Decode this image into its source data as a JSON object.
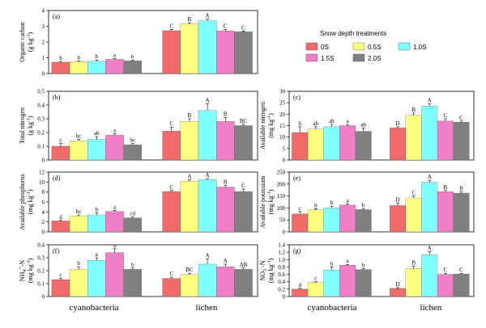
{
  "legend": {
    "title": "Snow depth treatments",
    "entries": [
      {
        "name": "0S",
        "color": "#f06a6a"
      },
      {
        "name": "0.5S",
        "color": "#ffff7f"
      },
      {
        "name": "1.0S",
        "color": "#7fffff"
      },
      {
        "name": "1.5S",
        "color": "#f07fc8"
      },
      {
        "name": "2.0S",
        "color": "#808080"
      }
    ]
  },
  "categories": [
    "cyanobacteria",
    "lichen"
  ],
  "chart_data": [
    {
      "type": "bar",
      "panel": "(a)",
      "ylabel_main": "Organic carbon",
      "ylabel_unit": "(g kg",
      "ylim": [
        0,
        4
      ],
      "yticks": [
        "0",
        "1",
        "2",
        "3",
        "4"
      ],
      "categories": [
        "cyanobacteria",
        "lichen"
      ],
      "series": [
        {
          "name": "0S",
          "values": [
            0.72,
            2.72
          ],
          "errors": [
            0.05,
            0.08
          ],
          "letters": [
            "b",
            "C"
          ]
        },
        {
          "name": "0.5S",
          "values": [
            0.75,
            3.15
          ],
          "errors": [
            0.05,
            0.08
          ],
          "letters": [
            "b",
            "B"
          ]
        },
        {
          "name": "1.0S",
          "values": [
            0.78,
            3.35
          ],
          "errors": [
            0.08,
            0.1
          ],
          "letters": [
            "b",
            "A"
          ]
        },
        {
          "name": "1.5S",
          "values": [
            0.9,
            2.7
          ],
          "errors": [
            0.05,
            0.1
          ],
          "letters": [
            "a",
            "C"
          ]
        },
        {
          "name": "2.0S",
          "values": [
            0.8,
            2.65
          ],
          "errors": [
            0.04,
            0.05
          ],
          "letters": [
            "b",
            "C"
          ]
        }
      ]
    },
    {
      "type": "bar",
      "panel": "(b)",
      "ylabel_main": "Total nitrogen",
      "ylabel_unit": "(g kg",
      "ylim": [
        0,
        0.5
      ],
      "yticks": [
        "0",
        "0.1",
        "0.2",
        "0.3",
        "0.4",
        "0.5"
      ],
      "categories": [
        "cyanobacteria",
        "lichen"
      ],
      "series": [
        {
          "name": "0S",
          "values": [
            0.1,
            0.21
          ],
          "errors": [
            0.02,
            0.03
          ],
          "letters": [
            "c",
            "C"
          ]
        },
        {
          "name": "0.5S",
          "values": [
            0.14,
            0.28
          ],
          "errors": [
            0.01,
            0.02
          ],
          "letters": [
            "bc",
            "B"
          ]
        },
        {
          "name": "1.0S",
          "values": [
            0.15,
            0.36
          ],
          "errors": [
            0.02,
            0.05
          ],
          "letters": [
            "ab",
            "A"
          ]
        },
        {
          "name": "1.5S",
          "values": [
            0.18,
            0.28
          ],
          "errors": [
            0.01,
            0.03
          ],
          "letters": [
            "a",
            "B"
          ]
        },
        {
          "name": "2.0S",
          "values": [
            0.11,
            0.25
          ],
          "errors": [
            0.01,
            0.01
          ],
          "letters": [
            "bc",
            "BC"
          ]
        }
      ]
    },
    {
      "type": "bar",
      "panel": "(c)",
      "ylabel_main": "Available nitrogen",
      "ylabel_unit": "(mg kg",
      "ylim": [
        0,
        30
      ],
      "yticks": [
        "0",
        "5",
        "10",
        "15",
        "20",
        "25",
        "30"
      ],
      "categories": [
        "cyanobacteria",
        "lichen"
      ],
      "series": [
        {
          "name": "0S",
          "values": [
            12,
            14
          ],
          "errors": [
            2.5,
            0.5
          ],
          "letters": [
            "b",
            "D"
          ]
        },
        {
          "name": "0.5S",
          "values": [
            13.5,
            19.5
          ],
          "errors": [
            1,
            1
          ],
          "letters": [
            "ab",
            "B"
          ]
        },
        {
          "name": "1.0S",
          "values": [
            14.5,
            23.5
          ],
          "errors": [
            1,
            1
          ],
          "letters": [
            "ab",
            "A"
          ]
        },
        {
          "name": "1.5S",
          "values": [
            15,
            17
          ],
          "errors": [
            0.5,
            1
          ],
          "letters": [
            "a",
            "C"
          ]
        },
        {
          "name": "2.0S",
          "values": [
            12.5,
            16.5
          ],
          "errors": [
            1.5,
            0.5
          ],
          "letters": [
            "ab",
            "C"
          ]
        }
      ]
    },
    {
      "type": "bar",
      "panel": "(d)",
      "ylabel_main": "Available phosphorus",
      "ylabel_unit": "(mg kg",
      "ylim": [
        0,
        12
      ],
      "yticks": [
        "0",
        "2",
        "4",
        "6",
        "8",
        "10",
        "12"
      ],
      "categories": [
        "cyanobacteria",
        "lichen"
      ],
      "series": [
        {
          "name": "0S",
          "values": [
            2.2,
            8.1
          ],
          "errors": [
            0.1,
            0.2
          ],
          "letters": [
            "d",
            "C"
          ]
        },
        {
          "name": "0.5S",
          "values": [
            3.2,
            10.2
          ],
          "errors": [
            0.2,
            0.3
          ],
          "letters": [
            "bc",
            "A"
          ]
        },
        {
          "name": "1.0S",
          "values": [
            3.4,
            10.5
          ],
          "errors": [
            0.4,
            0.2
          ],
          "letters": [
            "b",
            "A"
          ]
        },
        {
          "name": "1.5S",
          "values": [
            4.1,
            9.0
          ],
          "errors": [
            0.2,
            0.3
          ],
          "letters": [
            "a",
            "B"
          ]
        },
        {
          "name": "2.0S",
          "values": [
            2.8,
            8.1
          ],
          "errors": [
            0.2,
            0.5
          ],
          "letters": [
            "cd",
            "C"
          ]
        }
      ]
    },
    {
      "type": "bar",
      "panel": "(e)",
      "ylabel_main": "Available potassium",
      "ylabel_unit": "(mg kg",
      "ylim": [
        0,
        250
      ],
      "yticks": [
        "0",
        "50",
        "100",
        "150",
        "200",
        "250"
      ],
      "categories": [
        "cyanobacteria",
        "lichen"
      ],
      "series": [
        {
          "name": "0S",
          "values": [
            75,
            110
          ],
          "errors": [
            10,
            10
          ],
          "letters": [
            "c",
            "D"
          ]
        },
        {
          "name": "0.5S",
          "values": [
            92,
            142
          ],
          "errors": [
            5,
            8
          ],
          "letters": [
            "b",
            "C"
          ]
        },
        {
          "name": "1.0S",
          "values": [
            100,
            208
          ],
          "errors": [
            8,
            8
          ],
          "letters": [
            "b",
            "A"
          ]
        },
        {
          "name": "1.5S",
          "values": [
            112,
            168
          ],
          "errors": [
            5,
            5
          ],
          "letters": [
            "a",
            "B"
          ]
        },
        {
          "name": "2.0S",
          "values": [
            93,
            162
          ],
          "errors": [
            5,
            5
          ],
          "letters": [
            "b",
            "B"
          ]
        }
      ]
    },
    {
      "type": "bar",
      "panel": "(f)",
      "ylabel_main": "NH",
      "ylabel_unit": "(mg kg",
      "ylim": [
        0,
        0.4
      ],
      "yticks": [
        "0",
        "0.1",
        "0.2",
        "0.3",
        "0.4"
      ],
      "categories": [
        "cyanobacteria",
        "lichen"
      ],
      "series": [
        {
          "name": "0S",
          "values": [
            0.13,
            0.14
          ],
          "errors": [
            0.01,
            0.01
          ],
          "letters": [
            "c",
            "C"
          ]
        },
        {
          "name": "0.5S",
          "values": [
            0.21,
            0.17
          ],
          "errors": [
            0.02,
            0.01
          ],
          "letters": [
            "b",
            "BC"
          ]
        },
        {
          "name": "1.0S",
          "values": [
            0.28,
            0.25
          ],
          "errors": [
            0.02,
            0.04
          ],
          "letters": [
            "a",
            "A"
          ]
        },
        {
          "name": "1.5S",
          "values": [
            0.34,
            0.23
          ],
          "errors": [
            0.03,
            0.02
          ],
          "letters": [
            "a",
            "A"
          ]
        },
        {
          "name": "2.0S",
          "values": [
            0.21,
            0.21
          ],
          "errors": [
            0.01,
            0.01
          ],
          "letters": [
            "b",
            "AB"
          ]
        }
      ]
    },
    {
      "type": "bar",
      "panel": "(g)",
      "ylabel_main": "NO",
      "ylabel_unit": "(mg kg",
      "ylim": [
        0,
        1.4
      ],
      "yticks": [
        "0",
        "0.2",
        "0.4",
        "0.6",
        "0.8",
        "1.0",
        "1.2",
        "1.4"
      ],
      "categories": [
        "cyanobacteria",
        "lichen"
      ],
      "series": [
        {
          "name": "0S",
          "values": [
            0.2,
            0.22
          ],
          "errors": [
            0.02,
            0.02
          ],
          "letters": [
            "d",
            "D"
          ]
        },
        {
          "name": "0.5S",
          "values": [
            0.38,
            0.76
          ],
          "errors": [
            0.02,
            0.06
          ],
          "letters": [
            "c",
            "B"
          ]
        },
        {
          "name": "1.0S",
          "values": [
            0.72,
            1.13
          ],
          "errors": [
            0.08,
            0.08
          ],
          "letters": [
            "b",
            "A"
          ]
        },
        {
          "name": "1.5S",
          "values": [
            0.85,
            0.6
          ],
          "errors": [
            0.02,
            0.03
          ],
          "letters": [
            "a",
            "C"
          ]
        },
        {
          "name": "2.0S",
          "values": [
            0.73,
            0.61
          ],
          "errors": [
            0.03,
            0.02
          ],
          "letters": [
            "b",
            "C"
          ]
        }
      ]
    }
  ],
  "ylabel_extra": {
    "exp_minus1": "-1",
    "close": ")",
    "nh_sub": "4",
    "nh_sup": "+",
    "nh_suffix": "-N",
    "no_sub": "3",
    "no_sup": "-",
    "no_suffix": "-N"
  }
}
